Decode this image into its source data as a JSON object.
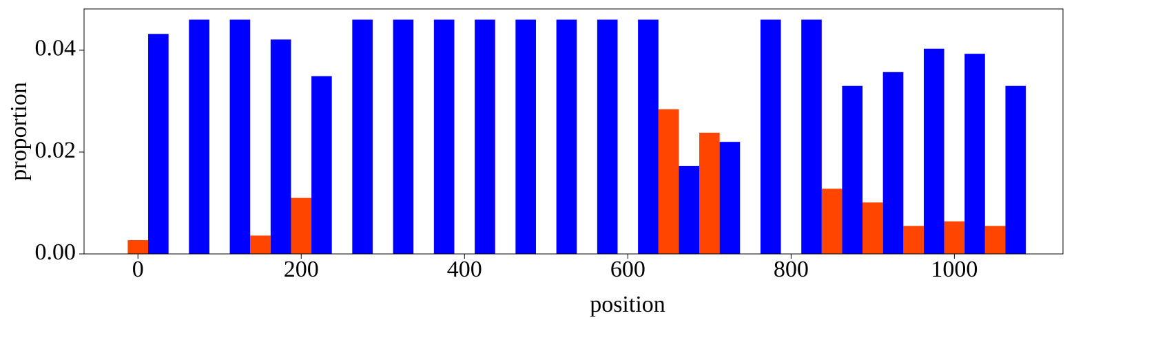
{
  "chart_data": {
    "type": "histogram",
    "xlabel": "position",
    "ylabel": "proportion",
    "bins": [
      -12.5,
      37.5,
      87.5,
      137.5,
      187.5,
      237.5,
      287.5,
      337.5,
      387.5,
      437.5,
      487.5,
      537.5,
      587.5,
      637.5,
      687.5,
      737.5,
      787.5,
      837.5,
      887.5,
      937.5,
      987.5,
      1037.5,
      1087.5
    ],
    "series": [
      {
        "color": "#ff4500",
        "values": [
          0.0027,
          0,
          0,
          0.0036,
          0.011,
          0,
          0,
          0,
          0,
          0,
          0,
          0,
          0,
          0.0284,
          0.0238,
          0,
          0,
          0.0128,
          0.0101,
          0.0055,
          0.0064,
          0.0055
        ]
      },
      {
        "color": "#0000ff",
        "values": [
          0.0432,
          0.046,
          0.046,
          0.0421,
          0.0349,
          0.046,
          0.046,
          0.046,
          0.046,
          0.046,
          0.046,
          0.046,
          0.046,
          0.0173,
          0.022,
          0.046,
          0.046,
          0.033,
          0.0357,
          0.0403,
          0.0393,
          0.033
        ]
      }
    ],
    "xlim": [
      -66,
      1133
    ],
    "ylim": [
      0,
      0.0481
    ],
    "xticks": [
      0,
      200,
      400,
      600,
      800,
      1000
    ],
    "yticks": [
      {
        "value": 0,
        "label": "0.00"
      },
      {
        "value": 0.02,
        "label": "0.02"
      },
      {
        "value": 0.04,
        "label": "0.04"
      }
    ]
  }
}
